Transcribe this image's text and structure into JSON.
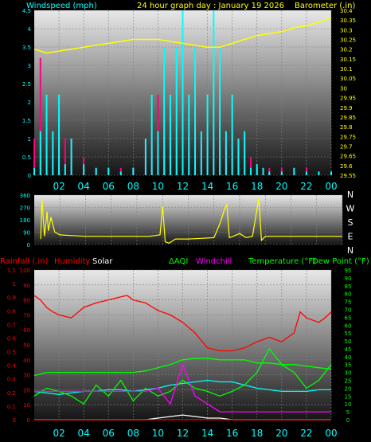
{
  "colors": {
    "background": "#000000",
    "wind": "#00ffff",
    "gust": "#ff0080",
    "barometer": "#ffff00",
    "direction": "#ffff00",
    "rain": "#ff0000",
    "humidity": "#ff0000",
    "solar": "#ffffff",
    "aqi": "#00ff00",
    "windchill": "#ff00ff",
    "temperature": "#00ff00",
    "dewpoint": "#00ffff",
    "tick_text": "#00ffff",
    "rain_axis": "#ff0000",
    "temp_axis": "#00ff00"
  },
  "header": {
    "title": "24 hour graph day : January 19 2026"
  },
  "x_ticks": [
    "02",
    "04",
    "06",
    "08",
    "10",
    "12",
    "14",
    "16",
    "18",
    "20",
    "22",
    "00"
  ],
  "chart_data": [
    {
      "type": "line",
      "title": "24 hour graph day : January 19 2026",
      "ylabel": "Windspeed (mph)",
      "y2label": "Barometer (.in)",
      "ylim": [
        0,
        4.5
      ],
      "y2lim": [
        29.55,
        30.4
      ],
      "yticks": [
        "0",
        "0.5",
        "1",
        "1.5",
        "2",
        "2.5",
        "3",
        "3.5",
        "4",
        "4.5"
      ],
      "y2ticks": [
        "29.55",
        "29.6",
        "29.65",
        "29.7",
        "29.75",
        "29.8",
        "29.85",
        "29.9",
        "29.95",
        "30",
        "30.05",
        "30.1",
        "30.15",
        "30.2",
        "30.25",
        "30.3",
        "30.35",
        "30.4"
      ],
      "xlim": [
        0,
        24
      ],
      "series": [
        {
          "name": "Windspeed (mph)",
          "x": [
            0,
            0.5,
            1,
            1.5,
            2,
            2.5,
            3,
            4,
            5,
            6,
            7,
            8,
            9,
            9.5,
            10,
            10.5,
            11,
            11.5,
            12,
            12.5,
            13,
            13.5,
            14,
            14.5,
            15,
            15.5,
            16,
            16.5,
            17,
            17.5,
            18,
            18.5,
            19,
            20,
            21,
            22,
            23,
            24
          ],
          "values": [
            0.2,
            1.2,
            2.2,
            1.2,
            2.2,
            0.3,
            1.0,
            0.3,
            0.2,
            0.2,
            0.1,
            0.2,
            1.0,
            2.2,
            1.2,
            3.5,
            2.2,
            3.5,
            4.5,
            2.2,
            3.5,
            1.2,
            2.2,
            4.5,
            3.5,
            1.2,
            2.2,
            1.0,
            1.2,
            0.2,
            0.3,
            0.2,
            0.1,
            0.1,
            0.2,
            0.1,
            0.1,
            0.1
          ]
        },
        {
          "name": "Gust",
          "x": [
            0,
            0.5,
            1,
            1.5,
            2,
            2.5,
            3,
            4,
            5,
            6,
            7,
            8,
            9,
            9.5,
            10,
            10.5,
            11,
            11.5,
            12,
            12.5,
            13,
            13.5,
            14,
            14.5,
            15,
            15.5,
            16,
            16.5,
            17,
            17.5,
            18,
            18.5,
            19,
            20,
            21,
            22,
            23,
            24
          ],
          "values": [
            1.0,
            3.2,
            1.0,
            1.0,
            1.0,
            1.0,
            1.0,
            0.5,
            0.2,
            0.2,
            0.2,
            0.2,
            1.0,
            1.0,
            2.2,
            1.0,
            2.2,
            1.0,
            3.2,
            1.0,
            2.2,
            1.0,
            1.0,
            1.0,
            1.0,
            1.0,
            1.0,
            1.0,
            1.0,
            0.5,
            0.2,
            0.2,
            0.2,
            0.2,
            0.2,
            0.2,
            0.1,
            0.1
          ]
        },
        {
          "name": "Barometer (.in)",
          "axis": "y2",
          "x": [
            0,
            1,
            2,
            3,
            4,
            5,
            6,
            7,
            8,
            9,
            10,
            11,
            12,
            13,
            14,
            15,
            16,
            17,
            18,
            19,
            20,
            21,
            22,
            23,
            24
          ],
          "values": [
            30.2,
            30.18,
            30.19,
            30.2,
            30.21,
            30.22,
            30.23,
            30.24,
            30.25,
            30.25,
            30.25,
            30.24,
            30.23,
            30.22,
            30.21,
            30.21,
            30.23,
            30.25,
            30.27,
            30.28,
            30.29,
            30.31,
            30.32,
            30.34,
            30.36
          ]
        }
      ]
    },
    {
      "type": "scatter",
      "ylabel": "",
      "ylim": [
        0,
        360
      ],
      "yticks": [
        "0",
        "90",
        "180",
        "270",
        "360"
      ],
      "compass": [
        "N",
        "W",
        "S",
        "E",
        "N"
      ],
      "series": [
        {
          "name": "Wind direction",
          "x": [
            0.5,
            0.6,
            0.8,
            1.0,
            1.1,
            1.3,
            1.6,
            2.0,
            3,
            4,
            5,
            6,
            7,
            8,
            9,
            9.8,
            10.0,
            10.2,
            10.5,
            11,
            12,
            13,
            14,
            14.5,
            14.8,
            15.0,
            15.2,
            15.5,
            16,
            16.5,
            17,
            17.5,
            17.7,
            18,
            19,
            20,
            21,
            22,
            23,
            24
          ],
          "values": [
            40,
            330,
            60,
            240,
            100,
            200,
            90,
            70,
            65,
            60,
            60,
            60,
            60,
            60,
            60,
            70,
            280,
            20,
            10,
            40,
            40,
            45,
            50,
            160,
            250,
            290,
            50,
            60,
            80,
            50,
            60,
            340,
            30,
            60,
            60,
            60,
            60,
            60,
            60,
            60
          ]
        }
      ]
    },
    {
      "type": "line",
      "ylabel": "Rainfall (.in)",
      "y2label": "Temperature (°F)",
      "legend": [
        "Rainfall (.in)",
        "Humidity",
        "Solar",
        "AQI",
        "Windchill",
        "Temperature (°F)",
        "Dew Point (°F)"
      ],
      "ylim": [
        0,
        1.1
      ],
      "yticks": [
        "0",
        "0.1",
        "0.2",
        "0.3",
        "0.4",
        "0.5",
        "0.6",
        "0.7",
        "0.8",
        "0.9",
        "1",
        "1.1"
      ],
      "hum_ticks": [
        "0",
        "10",
        "20",
        "30",
        "40",
        "50",
        "60",
        "70",
        "80",
        "90",
        "100"
      ],
      "y2lim": [
        0,
        95
      ],
      "y2ticks": [
        "0",
        "5",
        "10",
        "15",
        "20",
        "25",
        "30",
        "35",
        "40",
        "45",
        "50",
        "55",
        "60",
        "65",
        "70",
        "75",
        "80",
        "85",
        "90",
        "95"
      ],
      "series": [
        {
          "name": "Humidity",
          "scale": [
            0,
            100
          ],
          "x": [
            0,
            0.5,
            1,
            1.5,
            2,
            3,
            4,
            5,
            6,
            7,
            7.5,
            8,
            9,
            10,
            11,
            12,
            13,
            14,
            15,
            16,
            17,
            18,
            19,
            20,
            21,
            21.5,
            22,
            23,
            23.5,
            24
          ],
          "values": [
            83,
            80,
            75,
            72,
            70,
            68,
            75,
            78,
            80,
            82,
            83,
            80,
            78,
            73,
            70,
            65,
            58,
            48,
            46,
            46,
            48,
            52,
            55,
            52,
            58,
            72,
            68,
            65,
            68,
            72
          ]
        },
        {
          "name": "Temperature (°F)",
          "axis": "y2",
          "x": [
            0,
            1,
            2,
            3,
            4,
            5,
            6,
            7,
            8,
            9,
            10,
            11,
            12,
            13,
            14,
            15,
            16,
            17,
            18,
            19,
            20,
            21,
            22,
            23,
            24
          ],
          "values": [
            28,
            30,
            30,
            30,
            30,
            30,
            30,
            30,
            30,
            31,
            33,
            35,
            38,
            39,
            39,
            38,
            38,
            38,
            36,
            36,
            35,
            35,
            34,
            33,
            32
          ]
        },
        {
          "name": "Dew Point (°F)",
          "axis": "y2",
          "x": [
            0,
            1,
            2,
            3,
            4,
            5,
            6,
            7,
            8,
            9,
            10,
            11,
            12,
            13,
            14,
            15,
            16,
            17,
            18,
            19,
            20,
            21,
            22,
            23,
            24
          ],
          "values": [
            18,
            17,
            16,
            17,
            18,
            18,
            19,
            19,
            18,
            19,
            20,
            22,
            23,
            24,
            25,
            24,
            24,
            22,
            20,
            19,
            18,
            18,
            18,
            19,
            19
          ]
        },
        {
          "name": "AQI",
          "axis": "y2",
          "x": [
            0,
            1,
            2,
            3,
            4,
            5,
            6,
            7,
            8,
            9,
            10,
            11,
            12,
            13,
            14,
            15,
            16,
            17,
            18,
            19,
            20,
            21,
            22,
            23,
            24
          ],
          "values": [
            15,
            20,
            18,
            15,
            10,
            22,
            15,
            25,
            12,
            20,
            15,
            18,
            25,
            20,
            18,
            15,
            18,
            22,
            30,
            45,
            35,
            30,
            20,
            25,
            35
          ]
        },
        {
          "name": "Windchill",
          "axis": "y2",
          "x": [
            0,
            1,
            2,
            3,
            4,
            5,
            6,
            7,
            8,
            9,
            10,
            11,
            12,
            13,
            14,
            15,
            16,
            17,
            18,
            19,
            20,
            21,
            22,
            23,
            24
          ],
          "values": [
            18,
            18,
            18,
            18,
            18,
            18,
            18,
            18,
            18,
            18,
            20,
            10,
            35,
            15,
            10,
            5,
            5,
            5,
            5,
            5,
            5,
            5,
            5,
            5,
            5
          ]
        },
        {
          "name": "Solar",
          "axis": "y2",
          "x": [
            0,
            2,
            4,
            6,
            8,
            9,
            10,
            11,
            12,
            13,
            14,
            15,
            16,
            17,
            18,
            20,
            22,
            24
          ],
          "values": [
            0,
            0,
            0,
            0,
            0,
            0,
            1,
            2,
            3,
            2,
            1,
            1,
            0,
            0,
            0,
            0,
            0,
            0
          ]
        },
        {
          "name": "Rainfall (.in)",
          "x": [
            0,
            24
          ],
          "values": [
            0,
            0
          ]
        }
      ]
    }
  ]
}
